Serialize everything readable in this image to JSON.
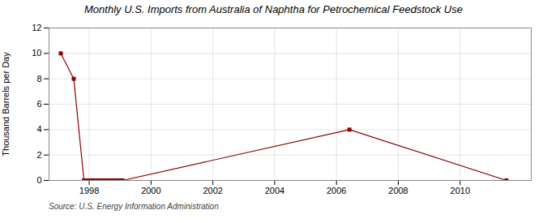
{
  "chart_data": {
    "type": "line",
    "title": "Monthly U.S. Imports from Australia of Naphtha for Petrochemical Feedstock Use",
    "ylabel": "Thousand Barrels per Day",
    "source": "Source: U.S. Energy Information Administration",
    "x": [
      1997.08,
      1997.5,
      1997.83,
      1997.92,
      1998.0,
      1998.08,
      1998.17,
      1998.25,
      1998.33,
      1998.42,
      1998.5,
      1998.58,
      1998.67,
      1998.75,
      1998.83,
      1998.92,
      1999.0,
      1999.08,
      2006.42,
      2011.5
    ],
    "values": [
      10,
      8,
      0,
      0,
      0,
      0,
      0,
      0,
      0,
      0,
      0,
      0,
      0,
      0,
      0,
      0,
      0,
      0,
      4,
      0
    ],
    "color": "#8b0000",
    "marker": "square",
    "xlim": [
      1996.7,
      2012.3
    ],
    "xticks": [
      1998,
      2000,
      2002,
      2004,
      2006,
      2008,
      2010
    ],
    "ylim": [
      0,
      12
    ],
    "yticks": [
      0,
      2,
      4,
      6,
      8,
      10,
      12
    ],
    "grid": true
  }
}
